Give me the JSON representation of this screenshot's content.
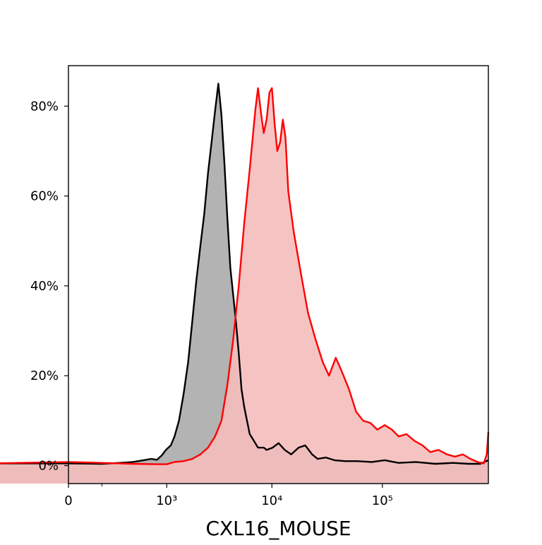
{
  "chart_data": {
    "type": "area",
    "title": "",
    "xlabel": "CXL16_MOUSE",
    "ylabel": "",
    "x_scale": "biexponential",
    "xlim": [
      0,
      900000
    ],
    "ylim": [
      -0.04,
      0.89
    ],
    "grid": false,
    "legend": "none",
    "x_ticks": [
      {
        "value": 0,
        "label": "0"
      },
      {
        "value": 1000,
        "label": "10³"
      },
      {
        "value": 10000,
        "label": "10⁴"
      },
      {
        "value": 100000,
        "label": "10⁵"
      }
    ],
    "x_minor_ticks": [
      -1000,
      150
    ],
    "y_ticks": [
      {
        "value": 0,
        "label": "0%"
      },
      {
        "value": 0.2,
        "label": "20%"
      },
      {
        "value": 0.4,
        "label": "40%"
      },
      {
        "value": 0.6,
        "label": "60%"
      },
      {
        "value": 0.8,
        "label": "80%"
      }
    ],
    "series": [
      {
        "color": "#000000",
        "fill": "#b3b3b3",
        "points": [
          [
            -1020,
            0.005
          ],
          [
            0,
            0.005
          ],
          [
            150,
            0.004
          ],
          [
            280,
            0.006
          ],
          [
            420,
            0.008
          ],
          [
            560,
            0.012
          ],
          [
            680,
            0.015
          ],
          [
            790,
            0.013
          ],
          [
            890,
            0.023
          ],
          [
            980,
            0.035
          ],
          [
            1100,
            0.045
          ],
          [
            1200,
            0.065
          ],
          [
            1330,
            0.1
          ],
          [
            1480,
            0.16
          ],
          [
            1640,
            0.23
          ],
          [
            1800,
            0.32
          ],
          [
            1970,
            0.41
          ],
          [
            2160,
            0.49
          ],
          [
            2350,
            0.56
          ],
          [
            2550,
            0.65
          ],
          [
            2760,
            0.72
          ],
          [
            2980,
            0.79
          ],
          [
            3200,
            0.85
          ],
          [
            3420,
            0.78
          ],
          [
            3650,
            0.67
          ],
          [
            3890,
            0.55
          ],
          [
            4140,
            0.44
          ],
          [
            4400,
            0.38
          ],
          [
            4670,
            0.32
          ],
          [
            4960,
            0.25
          ],
          [
            5260,
            0.17
          ],
          [
            5580,
            0.13
          ],
          [
            5910,
            0.1
          ],
          [
            6270,
            0.07
          ],
          [
            6640,
            0.06
          ],
          [
            7040,
            0.05
          ],
          [
            7470,
            0.04
          ],
          [
            7930,
            0.04
          ],
          [
            8420,
            0.04
          ],
          [
            8950,
            0.035
          ],
          [
            10150,
            0.04
          ],
          [
            11500,
            0.05
          ],
          [
            13100,
            0.035
          ],
          [
            15000,
            0.025
          ],
          [
            17500,
            0.04
          ],
          [
            20100,
            0.045
          ],
          [
            23200,
            0.025
          ],
          [
            26000,
            0.015
          ],
          [
            31000,
            0.018
          ],
          [
            37000,
            0.012
          ],
          [
            46000,
            0.01
          ],
          [
            60000,
            0.01
          ],
          [
            80000,
            0.008
          ],
          [
            105000,
            0.012
          ],
          [
            140000,
            0.006
          ],
          [
            200000,
            0.008
          ],
          [
            300000,
            0.004
          ],
          [
            430000,
            0.006
          ],
          [
            600000,
            0.004
          ],
          [
            760000,
            0.004
          ],
          [
            900000,
            0.012
          ]
        ]
      },
      {
        "color": "#ff0000",
        "fill": "#f5bcbd",
        "points": [
          [
            -1020,
            0.004
          ],
          [
            0,
            0.008
          ],
          [
            150,
            0.006
          ],
          [
            420,
            0.004
          ],
          [
            790,
            0.003
          ],
          [
            1000,
            0.003
          ],
          [
            1200,
            0.008
          ],
          [
            1480,
            0.01
          ],
          [
            1800,
            0.015
          ],
          [
            2160,
            0.025
          ],
          [
            2550,
            0.04
          ],
          [
            2980,
            0.065
          ],
          [
            3420,
            0.1
          ],
          [
            3890,
            0.18
          ],
          [
            4400,
            0.28
          ],
          [
            4960,
            0.4
          ],
          [
            5580,
            0.54
          ],
          [
            6270,
            0.66
          ],
          [
            7040,
            0.79
          ],
          [
            7470,
            0.84
          ],
          [
            8000,
            0.78
          ],
          [
            8420,
            0.74
          ],
          [
            8950,
            0.77
          ],
          [
            9500,
            0.83
          ],
          [
            10000,
            0.84
          ],
          [
            10600,
            0.76
          ],
          [
            11200,
            0.7
          ],
          [
            11900,
            0.72
          ],
          [
            12600,
            0.77
          ],
          [
            13300,
            0.73
          ],
          [
            14100,
            0.61
          ],
          [
            15800,
            0.52
          ],
          [
            18300,
            0.43
          ],
          [
            21300,
            0.34
          ],
          [
            25000,
            0.28
          ],
          [
            29000,
            0.23
          ],
          [
            33000,
            0.2
          ],
          [
            38000,
            0.24
          ],
          [
            43000,
            0.21
          ],
          [
            50000,
            0.17
          ],
          [
            58000,
            0.12
          ],
          [
            67000,
            0.1
          ],
          [
            78000,
            0.095
          ],
          [
            90000,
            0.08
          ],
          [
            105000,
            0.09
          ],
          [
            122000,
            0.08
          ],
          [
            140000,
            0.065
          ],
          [
            165000,
            0.07
          ],
          [
            195000,
            0.055
          ],
          [
            230000,
            0.045
          ],
          [
            270000,
            0.03
          ],
          [
            320000,
            0.035
          ],
          [
            380000,
            0.025
          ],
          [
            450000,
            0.02
          ],
          [
            530000,
            0.025
          ],
          [
            620000,
            0.015
          ],
          [
            720000,
            0.008
          ],
          [
            820000,
            0.005
          ],
          [
            870000,
            0.025
          ],
          [
            900000,
            0.075
          ]
        ]
      }
    ]
  }
}
